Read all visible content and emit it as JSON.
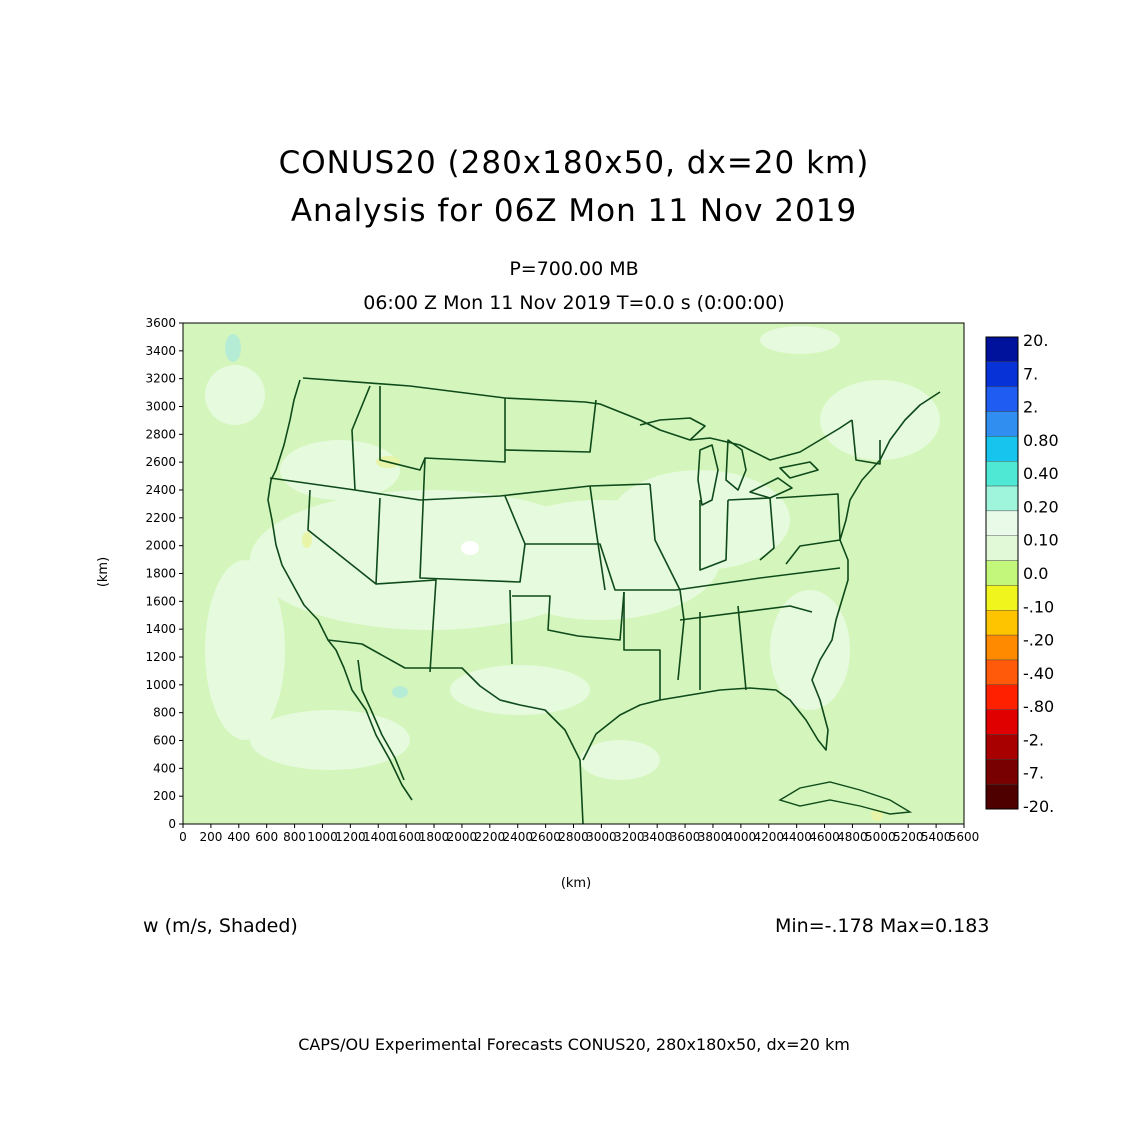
{
  "header": {
    "title_line1": "CONUS20 (280x180x50, dx=20 km)",
    "title_line2": "Analysis for 06Z Mon 11 Nov 2019",
    "level": "P=700.00 MB",
    "time_line": "06:00 Z Mon 11 Nov 2019    T=0.0 s (0:00:00)"
  },
  "axes": {
    "x_label": "(km)",
    "y_label": "(km)",
    "x_ticks": [
      "0",
      "200",
      "400",
      "600",
      "800",
      "1000",
      "1200",
      "1400",
      "1600",
      "1800",
      "2000",
      "2200",
      "2400",
      "2600",
      "2800",
      "3000",
      "3200",
      "3400",
      "3600",
      "3800",
      "4000",
      "4200",
      "4400",
      "4600",
      "4800",
      "5000",
      "5200",
      "5400",
      "5600"
    ],
    "y_ticks": [
      "0",
      "200",
      "400",
      "600",
      "800",
      "1000",
      "1200",
      "1400",
      "1600",
      "1800",
      "2000",
      "2200",
      "2400",
      "2600",
      "2800",
      "3000",
      "3200",
      "3400",
      "3600"
    ],
    "x_range": [
      0,
      5600
    ],
    "y_range": [
      0,
      3600
    ]
  },
  "legend": {
    "labels": [
      "20.",
      "7.",
      "2.",
      "0.80",
      "0.40",
      "0.20",
      "0.10",
      "0.0",
      "-.10",
      "-.20",
      "-.40",
      "-.80",
      "-2.",
      "-7.",
      "-20."
    ],
    "colors": [
      "#00129c",
      "#0632d8",
      "#1e5cf2",
      "#2f8ef0",
      "#16c4ee",
      "#4fe8d4",
      "#9ff4dc",
      "#e9fae9",
      "#e1f9d6",
      "#c3f77c",
      "#f0f51e",
      "#ffc400",
      "#ff8a00",
      "#ff5a0a",
      "#ff2000",
      "#e00000",
      "#a80000",
      "#780000",
      "#4e0000"
    ]
  },
  "field_label": "w (m/s, Shaded)",
  "minmax": "Min=-.178 Max=0.183",
  "footer": "CAPS/OU Experimental Forecasts  CONUS20, 280x180x50, dx=20 km",
  "map_colors": {
    "background": "#d4f6bc",
    "light": "#e6fadd",
    "border": "#0e4a1a"
  }
}
